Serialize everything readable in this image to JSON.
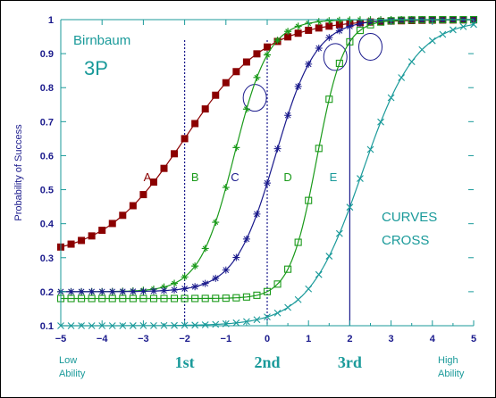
{
  "chart_data": {
    "type": "line",
    "title": "Birnbaum",
    "subtitle": "3P",
    "ylabel": "Probability of Success",
    "xlim": [
      -5,
      5
    ],
    "ylim": [
      0.1,
      1.0
    ],
    "x_ticks": [
      "−5",
      "−4",
      "−3",
      "−2",
      "−1",
      "0",
      "1",
      "2",
      "3",
      "4",
      "5"
    ],
    "y_ticks": [
      "0.1",
      "0.2",
      "0.3",
      "0.4",
      "0.5",
      "0.6",
      "0.7",
      "0.8",
      "0.9",
      "1"
    ],
    "x_bottom_labels": {
      "low": [
        "Low",
        "Ability"
      ],
      "high": [
        "High",
        "Ability"
      ],
      "crossings": [
        "1st",
        "2nd",
        "3rd"
      ]
    },
    "annotation": [
      "CURVES",
      "CROSS"
    ],
    "grid": false,
    "vertical_lines": [
      {
        "x": -2,
        "style": "dotted"
      },
      {
        "x": 0,
        "style": "dotted"
      },
      {
        "x": 2,
        "style": "solid"
      }
    ],
    "crossing_circles": [
      {
        "x": -0.3,
        "y": 0.77
      },
      {
        "x": 1.65,
        "y": 0.89
      },
      {
        "x": 2.5,
        "y": 0.92
      }
    ],
    "series": [
      {
        "name": "A",
        "color": "#8b0000",
        "marker": "filled-square",
        "a": 0.6,
        "b": -2.0,
        "c": 0.3,
        "label_pos": {
          "x": -2.9,
          "y": 0.525
        }
      },
      {
        "name": "B",
        "color": "#1a9a1a",
        "marker": "plus-star",
        "a": 1.4,
        "b": -0.8,
        "c": 0.2,
        "label_pos": {
          "x": -1.75,
          "y": 0.525
        }
      },
      {
        "name": "C",
        "color": "#1a1a8c",
        "marker": "asterisk",
        "a": 1.2,
        "b": 0.2,
        "c": 0.2,
        "label_pos": {
          "x": -0.78,
          "y": 0.525
        }
      },
      {
        "name": "D",
        "color": "#1a9a1a",
        "marker": "open-square",
        "a": 1.8,
        "b": 1.2,
        "c": 0.18,
        "label_pos": {
          "x": 0.5,
          "y": 0.525
        }
      },
      {
        "name": "E",
        "color": "#1a9a9a",
        "marker": "x-cross",
        "a": 0.9,
        "b": 2.3,
        "c": 0.1,
        "label_pos": {
          "x": 1.6,
          "y": 0.525
        }
      }
    ]
  }
}
